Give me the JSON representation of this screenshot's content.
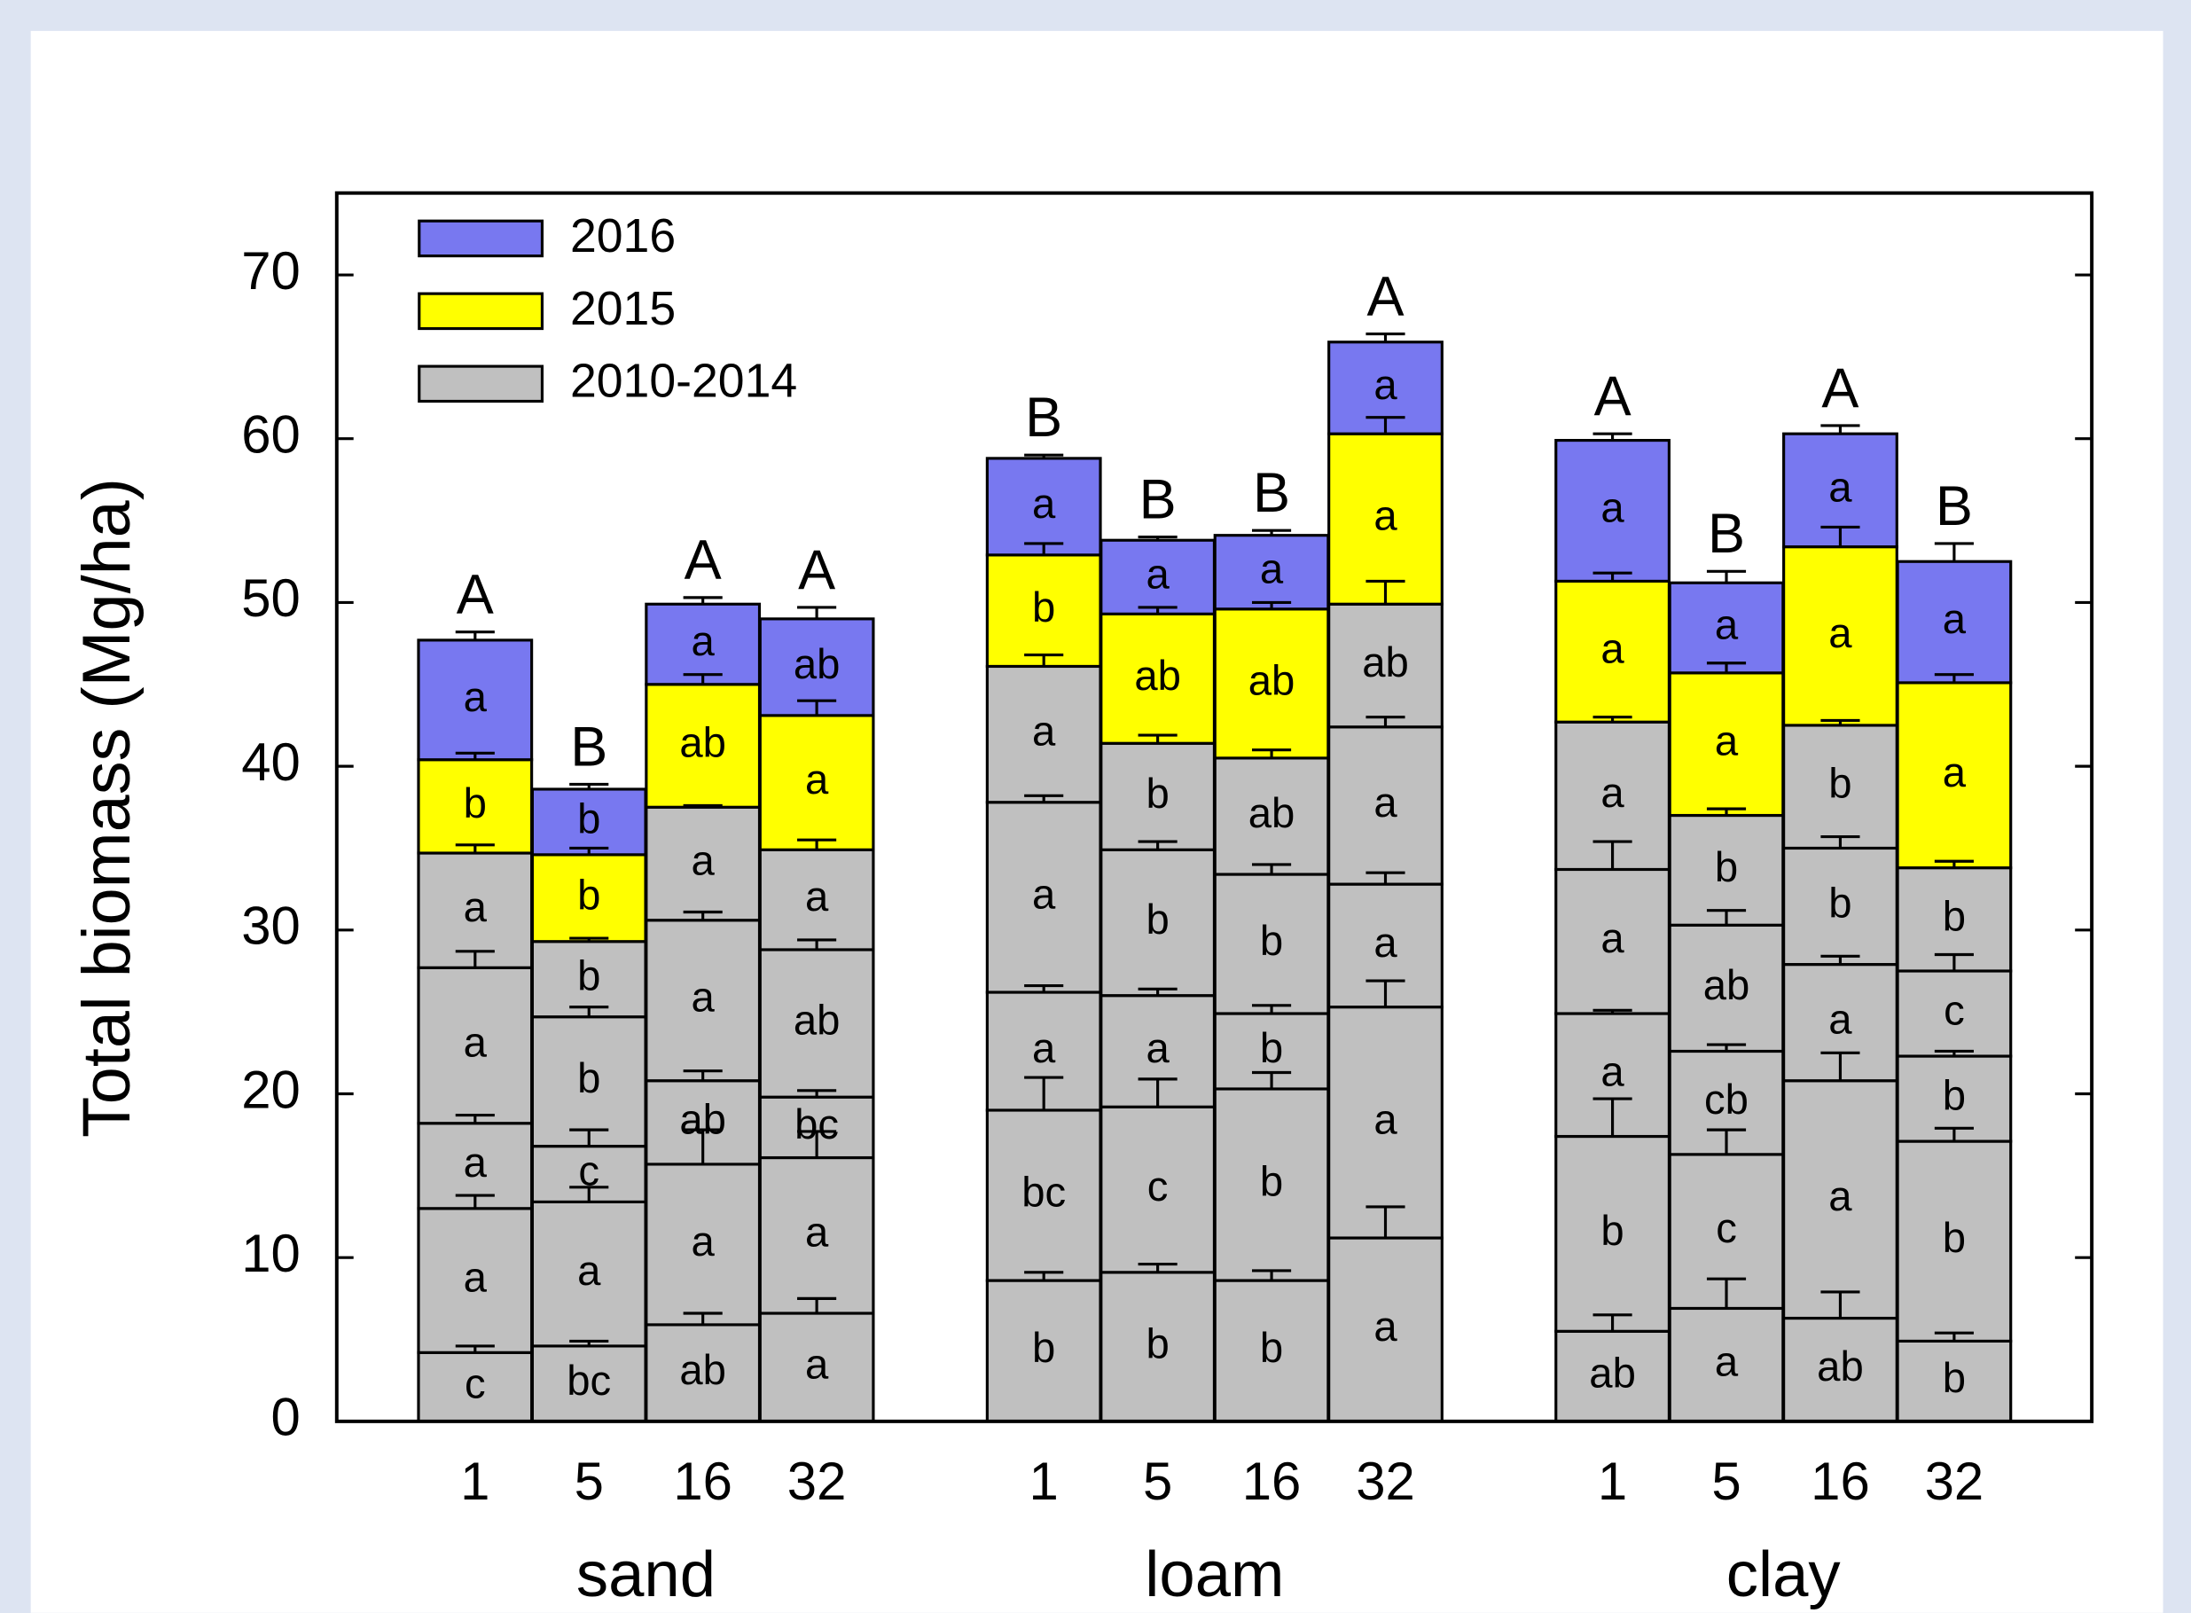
{
  "chart_data": {
    "type": "stacked-bar",
    "ylabel": "Total biomass (Mg/ha)",
    "ylim": [
      0,
      75
    ],
    "yticks": [
      0,
      10,
      20,
      30,
      40,
      50,
      60,
      70
    ],
    "groups": [
      {
        "name": "sand",
        "categories": [
          "1",
          "5",
          "16",
          "32"
        ]
      },
      {
        "name": "loam",
        "categories": [
          "1",
          "5",
          "16",
          "32"
        ]
      },
      {
        "name": "clay",
        "categories": [
          "1",
          "5",
          "16",
          "32"
        ]
      }
    ],
    "top_letters": [
      "A",
      "B",
      "A",
      "A",
      "B",
      "B",
      "B",
      "A",
      "A",
      "B",
      "A",
      "B"
    ],
    "series": [
      {
        "name": "2016",
        "color": "#7878f0",
        "values": [
          7.3,
          4.0,
          4.9,
          5.9,
          5.9,
          4.5,
          4.5,
          5.6,
          8.6,
          5.5,
          6.9,
          7.4
        ],
        "errors": [
          0.5,
          0.3,
          0.4,
          0.7,
          0.2,
          0.2,
          0.3,
          0.5,
          0.4,
          0.7,
          0.5,
          1.1
        ],
        "letters": [
          "a",
          "b",
          "a",
          "ab",
          "a",
          "a",
          "a",
          "a",
          "a",
          "a",
          "a",
          "a"
        ]
      },
      {
        "name": "2015",
        "color": "#ffff00",
        "values": [
          5.7,
          5.3,
          7.5,
          8.2,
          6.8,
          7.9,
          9.1,
          10.4,
          8.6,
          8.7,
          10.9,
          11.3
        ],
        "errors": [
          0.4,
          0.4,
          0.6,
          0.9,
          0.7,
          0.4,
          0.4,
          1.0,
          0.5,
          0.6,
          1.2,
          0.5
        ],
        "letters": [
          "b",
          "b",
          "ab",
          "a",
          "b",
          "ab",
          "ab",
          "a",
          "a",
          "a",
          "a",
          "a"
        ]
      },
      {
        "name": "2010-2014",
        "color": "#c0c0c0",
        "values": [
          [
            4.2,
            8.8,
            5.2,
            9.5,
            7.0
          ],
          [
            4.6,
            8.8,
            3.4,
            7.9,
            4.6
          ],
          [
            5.9,
            9.8,
            5.1,
            9.8,
            6.9
          ],
          [
            6.6,
            9.5,
            3.7,
            9.0,
            6.1
          ],
          [
            8.6,
            10.4,
            7.2,
            11.6,
            8.3
          ],
          [
            9.1,
            10.1,
            6.8,
            8.9,
            6.5
          ],
          [
            8.6,
            11.7,
            4.6,
            8.5,
            7.1
          ],
          [
            11.2,
            14.1,
            7.5,
            9.6,
            7.5
          ],
          [
            5.5,
            11.9,
            7.5,
            8.8,
            9.0
          ],
          [
            6.9,
            9.4,
            6.3,
            7.7,
            6.7
          ],
          [
            6.3,
            14.5,
            7.1,
            7.1,
            7.5
          ],
          [
            4.9,
            12.2,
            5.2,
            5.2,
            6.3
          ]
        ],
        "errors": [
          [
            0.4,
            0.8,
            0.5,
            1.0,
            0.5
          ],
          [
            0.3,
            0.9,
            1.0,
            0.6,
            0.2
          ],
          [
            0.7,
            2.1,
            0.6,
            0.5,
            0.1
          ],
          [
            0.9,
            1.6,
            0.4,
            0.6,
            0.6
          ],
          [
            0.5,
            2.0,
            0.4,
            0.4,
            0.7
          ],
          [
            0.5,
            1.7,
            0.4,
            0.5,
            0.5
          ],
          [
            0.6,
            1.0,
            0.5,
            0.6,
            0.5
          ],
          [
            1.9,
            1.6,
            0.7,
            0.6,
            1.4
          ],
          [
            1.0,
            2.3,
            0.2,
            1.7,
            0.3
          ],
          [
            1.8,
            1.5,
            0.4,
            0.9,
            0.4
          ],
          [
            1.6,
            1.7,
            0.5,
            0.7,
            0.3
          ],
          [
            0.5,
            0.8,
            0.3,
            1.0,
            0.4
          ]
        ],
        "letters": [
          [
            "c",
            "a",
            "a",
            "a",
            "a"
          ],
          [
            "bc",
            "a",
            "c",
            "b",
            "b"
          ],
          [
            "ab",
            "a",
            "ab",
            "a",
            "a"
          ],
          [
            "a",
            "a",
            "bc",
            "ab",
            "a"
          ],
          [
            "b",
            "bc",
            "a",
            "a",
            "a"
          ],
          [
            "b",
            "c",
            "a",
            "b",
            "b"
          ],
          [
            "b",
            "b",
            "b",
            "b",
            "ab"
          ],
          [
            "a",
            "a",
            "a",
            "a",
            "ab"
          ],
          [
            "ab",
            "b",
            "a",
            "a",
            "a"
          ],
          [
            "a",
            "c",
            "cb",
            "ab",
            "b"
          ],
          [
            "ab",
            "a",
            "a",
            "b",
            "b"
          ],
          [
            "b",
            "b",
            "b",
            "c",
            "b"
          ]
        ]
      }
    ]
  }
}
